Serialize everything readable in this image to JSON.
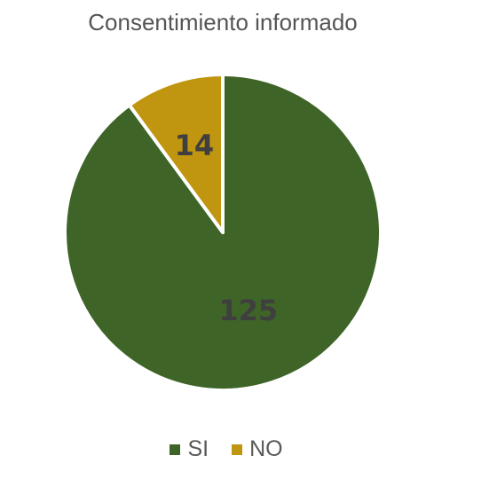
{
  "chart_data": {
    "type": "pie",
    "title": "Consentimiento informado",
    "categories": [
      "SI",
      "NO"
    ],
    "values": [
      125,
      14
    ],
    "colors": [
      "#3e6428",
      "#c0950f"
    ],
    "data_labels": [
      "125",
      "14"
    ],
    "legend_position": "bottom",
    "slice_border_color": "#ffffff"
  }
}
